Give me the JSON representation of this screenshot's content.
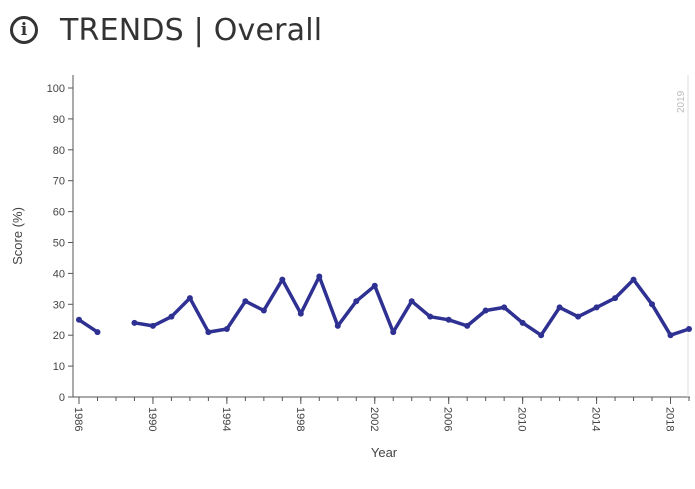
{
  "header": {
    "icon": "info-icon",
    "icon_glyph": "i",
    "title": "TRENDS | Overall"
  },
  "colors": {
    "line": "#2e3192",
    "axis": "#555555",
    "marker_line": "#dddddd"
  },
  "chart_data": {
    "type": "line",
    "title": "TRENDS | Overall",
    "xlabel": "Year",
    "ylabel": "Score (%)",
    "ylim": [
      0,
      100
    ],
    "yticks": [
      0,
      10,
      20,
      30,
      40,
      50,
      60,
      70,
      80,
      90,
      100
    ],
    "xlim": [
      1986,
      2019
    ],
    "xticks": [
      1986,
      1990,
      1994,
      1998,
      2002,
      2006,
      2010,
      2014,
      2018
    ],
    "grid": false,
    "marker_label": "2019",
    "series": [
      {
        "segments": [
          [
            [
              1986,
              25
            ],
            [
              1987,
              21
            ]
          ],
          [
            [
              1989,
              24
            ],
            [
              1990,
              23
            ],
            [
              1991,
              26
            ],
            [
              1992,
              32
            ],
            [
              1993,
              21
            ],
            [
              1994,
              22
            ],
            [
              1995,
              31
            ],
            [
              1996,
              28
            ],
            [
              1997,
              38
            ],
            [
              1998,
              27
            ],
            [
              1999,
              39
            ],
            [
              2000,
              23
            ],
            [
              2001,
              31
            ],
            [
              2002,
              36
            ],
            [
              2003,
              21
            ],
            [
              2004,
              31
            ],
            [
              2005,
              26
            ],
            [
              2006,
              25
            ],
            [
              2007,
              23
            ],
            [
              2008,
              28
            ],
            [
              2009,
              29
            ],
            [
              2010,
              24
            ],
            [
              2011,
              20
            ],
            [
              2012,
              29
            ],
            [
              2013,
              26
            ],
            [
              2014,
              29
            ],
            [
              2015,
              32
            ],
            [
              2016,
              38
            ],
            [
              2017,
              30
            ],
            [
              2018,
              20
            ],
            [
              2019,
              22
            ]
          ]
        ]
      }
    ]
  }
}
